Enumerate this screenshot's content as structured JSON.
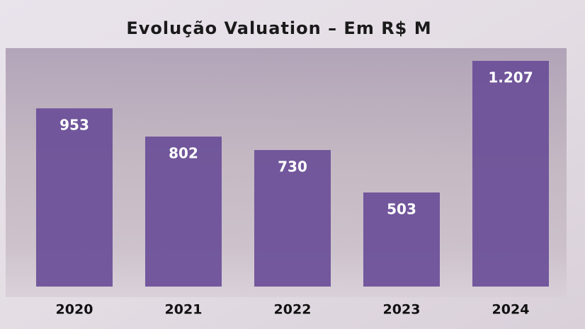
{
  "chart_data": {
    "type": "bar",
    "title": "Evolução Valuation – Em R$ M",
    "categories": [
      "2020",
      "2021",
      "2022",
      "2023",
      "2024"
    ],
    "values": [
      953,
      802,
      730,
      503,
      1207
    ],
    "value_labels": [
      "953",
      "802",
      "730",
      "503",
      "1.207"
    ],
    "color": "#6a4e98"
  }
}
